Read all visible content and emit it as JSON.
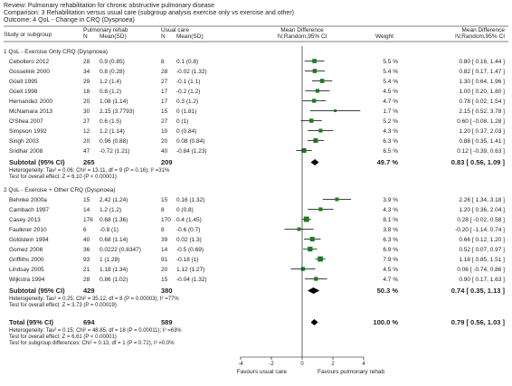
{
  "header": {
    "review": "Review:  Pulmonary rehabilitation for chronic obstructive pulmonary disease",
    "comparison": "Comparison:  3 Rehabilitation versus usual care (subgroup analysis exercise only vs exercise and other)",
    "outcome": "Outcome:  4 QoL - Change in CRQ (Dyspnoea)"
  },
  "columns": {
    "study": "Study or subgroup",
    "pr_group": "Pulmonary rehab",
    "uc_group": "Usual care",
    "n": "N",
    "meansd": "Mean(SD)",
    "md_title": "Mean Difference",
    "md_method": "IV,Random,95% CI",
    "weight": "Weight",
    "md_title_right": "Mean Difference",
    "md_method_right": "IV,Random,95% CI"
  },
  "colors": {
    "study_square": "#1e7a1e",
    "diamond": "#000000",
    "line": "#000000"
  },
  "chart_data": {
    "type": "forest",
    "x_axis": {
      "ticks": [
        -4,
        -2,
        0,
        2,
        4
      ],
      "xlim": [
        -4,
        4
      ],
      "left_label": "Favours usual care",
      "right_label": "Favours pulmonary rehab"
    },
    "subgroups": [
      {
        "title": "1 QoL - Exercise Only CRQ (Dyspnoea)",
        "studies": [
          {
            "name": "Cebollero 2012",
            "n1": "28",
            "m1": "0.9 (0.85)",
            "n2": "8",
            "m2": "0.1 (0.8)",
            "md": 0.8,
            "lo": 0.16,
            "hi": 1.44,
            "weight": "5.5 %",
            "ci": "0.80 [ 0.16, 1.44 ]"
          },
          {
            "name": "Gosselink 2000",
            "n1": "34",
            "m1": "0.8 (0.28)",
            "n2": "28",
            "m2": "-0.02 (1.32)",
            "md": 0.82,
            "lo": 0.17,
            "hi": 1.47,
            "weight": "5.4 %",
            "ci": "0.82 [ 0.17, 1.47 ]"
          },
          {
            "name": "Güell 1995",
            "n1": "29",
            "m1": "1.2 (1.4)",
            "n2": "27",
            "m2": "-0.1 (1.1)",
            "md": 1.3,
            "lo": 0.64,
            "hi": 1.96,
            "weight": "5.4 %",
            "ci": "1.30 [ 0.64, 1.96 ]"
          },
          {
            "name": "Güell 1998",
            "n1": "18",
            "m1": "0.8 (1.2)",
            "n2": "17",
            "m2": "-0.2 (1.2)",
            "md": 1.0,
            "lo": 0.2,
            "hi": 1.8,
            "weight": "4.5 %",
            "ci": "1.00 [ 0.20, 1.80 ]"
          },
          {
            "name": "Hernandez 2000",
            "n1": "20",
            "m1": "1.08 (1.14)",
            "n2": "17",
            "m2": "0.3 (1.2)",
            "md": 0.78,
            "lo": 0.02,
            "hi": 1.54,
            "weight": "4.7 %",
            "ci": "0.78 [ 0.02, 1.54 ]"
          },
          {
            "name": "McNamara 2013",
            "n1": "30",
            "m1": "2.15 (3.7793)",
            "n2": "15",
            "m2": "0 (1.81)",
            "md": 2.15,
            "lo": 0.52,
            "hi": 3.78,
            "weight": "1.7 %",
            "ci": "2.15 [ 0.52, 3.78 ]"
          },
          {
            "name": "O'Shea 2007",
            "n1": "27",
            "m1": "0.6 (1.5)",
            "n2": "27",
            "m2": "0 (1)",
            "md": 0.6,
            "lo": -0.08,
            "hi": 1.28,
            "weight": "5.2 %",
            "ci": "0.60 [ -0.08, 1.28 ]"
          },
          {
            "name": "Simpson 1992",
            "n1": "12",
            "m1": "1.2 (1.14)",
            "n2": "10",
            "m2": "0 (0.84)",
            "md": 1.2,
            "lo": 0.37,
            "hi": 2.03,
            "weight": "4.3 %",
            "ci": "1.20 [ 0.37, 2.03 ]"
          },
          {
            "name": "Singh 2003",
            "n1": "20",
            "m1": "0.96 (0.88)",
            "n2": "20",
            "m2": "0.08 (0.84)",
            "md": 0.88,
            "lo": 0.35,
            "hi": 1.41,
            "weight": "6.3 %",
            "ci": "0.88 [ 0.35, 1.41 ]"
          },
          {
            "name": "Sridhar 2008",
            "n1": "47",
            "m1": "-0.72 (1.21)",
            "n2": "40",
            "m2": "-0.84 (1.23)",
            "md": 0.12,
            "lo": -0.39,
            "hi": 0.63,
            "weight": "6.5 %",
            "ci": "0.12 [ -0.39, 0.63 ]"
          }
        ],
        "subtotal": {
          "label": "Subtotal (95% CI)",
          "n1": "265",
          "n2": "209",
          "md": 0.83,
          "lo": 0.56,
          "hi": 1.09,
          "weight": "49.7 %",
          "ci": "0.83 [ 0.56, 1.09 ]"
        },
        "heterogeneity": "Heterogeneity: Tau² = 0.06; Chi² = 13.11, df = 9 (P = 0.16); I² =31%",
        "overall_test": "Test for overall effect: Z = 6.10 (P < 0.00001)"
      },
      {
        "title": "2 QoL - Exercise + Other CRQ (Dyspnoea)",
        "studies": [
          {
            "name": "Behnke 2000a",
            "n1": "15",
            "m1": "2.42 (1.24)",
            "n2": "15",
            "m2": "0.16 (1.32)",
            "md": 2.26,
            "lo": 1.34,
            "hi": 3.18,
            "weight": "3.9 %",
            "ci": "2.26 [ 1.34, 3.18 ]"
          },
          {
            "name": "Cambach 1997",
            "n1": "14",
            "m1": "1.2 (1.2)",
            "n2": "8",
            "m2": "0 (0.8)",
            "md": 1.2,
            "lo": 0.36,
            "hi": 2.04,
            "weight": "4.3 %",
            "ci": "1.20 [ 0.36, 2.04 ]"
          },
          {
            "name": "Casey 2013",
            "n1": "176",
            "m1": "0.68 (1.36)",
            "n2": "170",
            "m2": "0.4 (1.45)",
            "md": 0.28,
            "lo": -0.02,
            "hi": 0.58,
            "weight": "8.1 %",
            "ci": "0.28 [ -0.02, 0.58 ]"
          },
          {
            "name": "Faulkner 2010",
            "n1": "6",
            "m1": "-0.8 (1)",
            "n2": "8",
            "m2": "-0.6 (0.7)",
            "md": -0.2,
            "lo": -1.14,
            "hi": 0.74,
            "weight": "3.8 %",
            "ci": "-0.20 [ -1.14, 0.74 ]"
          },
          {
            "name": "Goldstein 1994",
            "n1": "40",
            "m1": "0.68 (1.14)",
            "n2": "39",
            "m2": "0.02 (1.3)",
            "md": 0.66,
            "lo": 0.12,
            "hi": 1.2,
            "weight": "6.3 %",
            "ci": "0.66 [ 0.12, 1.20 ]"
          },
          {
            "name": "Gomez 2006",
            "n1": "36",
            "m1": "0.0222 (0.8347)",
            "n2": "14",
            "m2": "-0.5 (0.69)",
            "md": 0.52,
            "lo": 0.07,
            "hi": 0.97,
            "weight": "6.9 %",
            "ci": "0.52 [ 0.07, 0.97 ]"
          },
          {
            "name": "Griffiths 2000",
            "n1": "93",
            "m1": "1 (1.28)",
            "n2": "91",
            "m2": "-0.18 (1)",
            "md": 1.18,
            "lo": 0.85,
            "hi": 1.51,
            "weight": "7.9 %",
            "ci": "1.18 [ 0.85, 1.51 ]"
          },
          {
            "name": "Lindsay 2005",
            "n1": "21",
            "m1": "1.18 (1.34)",
            "n2": "20",
            "m2": "1.12 (1.27)",
            "md": 0.06,
            "lo": -0.74,
            "hi": 0.86,
            "weight": "4.5 %",
            "ci": "0.06 [ -0.74, 0.86 ]"
          },
          {
            "name": "Wijkstra 1994",
            "n1": "28",
            "m1": "0.86 (1.02)",
            "n2": "15",
            "m2": "-0.04 (1.32)",
            "md": 0.9,
            "lo": 0.17,
            "hi": 1.63,
            "weight": "4.7 %",
            "ci": "0.90 [ 0.17, 1.63 ]"
          }
        ],
        "subtotal": {
          "label": "Subtotal (95% CI)",
          "n1": "429",
          "n2": "380",
          "md": 0.74,
          "lo": 0.35,
          "hi": 1.13,
          "weight": "50.3 %",
          "ci": "0.74 [ 0.35, 1.13 ]"
        },
        "heterogeneity": "Heterogeneity: Tau² = 0.25; Chi² = 35.12, df = 8 (P = 0.00003); I² =77%",
        "overall_test": "Test for overall effect: Z = 3.73 (P = 0.00019)"
      }
    ],
    "total": {
      "label": "Total (95% CI)",
      "n1": "694",
      "n2": "589",
      "md": 0.79,
      "lo": 0.56,
      "hi": 1.03,
      "weight": "100.0 %",
      "ci": "0.79 [ 0.56, 1.03 ]"
    },
    "total_heterogeneity": "Heterogeneity: Tau² = 0.15; Chi² = 48.85, df = 18 (P = 0.00011); I² =63%",
    "total_overall_test": "Test for overall effect: Z = 6.61 (P < 0.00001)",
    "subgroup_differences": "Test for subgroup differences: Chi² = 0.13, df = 1 (P = 0.72), I² =0.0%"
  }
}
